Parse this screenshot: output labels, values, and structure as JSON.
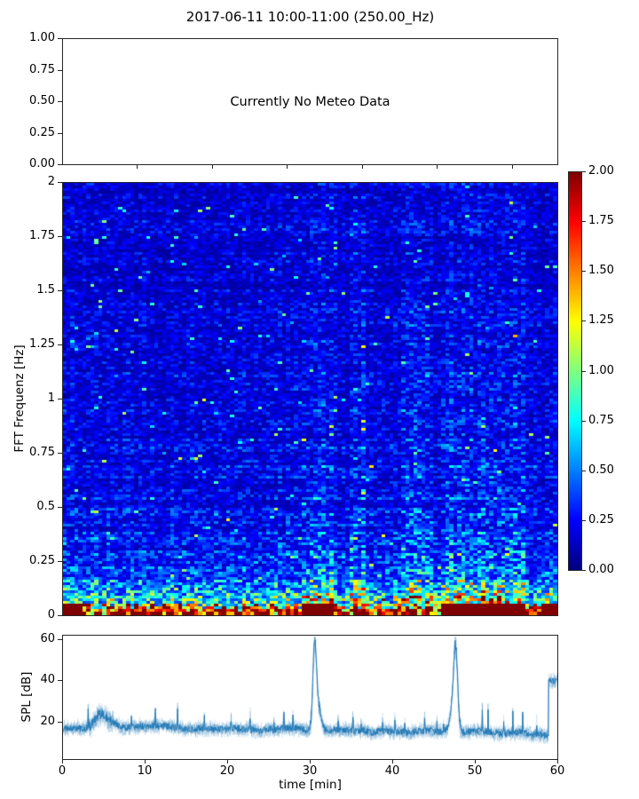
{
  "title": "2017-06-11 10:00-11:00 (250.00_Hz)",
  "colors": {
    "accent": "#1f77b4",
    "spine": "#262626",
    "background": "#ffffff"
  },
  "meteo_panel": {
    "message": "Currently No Meteo Data",
    "yticks": [
      "1.00",
      "0.75",
      "0.50",
      "0.25",
      "0.00"
    ],
    "ylim": [
      0.0,
      1.0
    ],
    "xtick_positions": [
      0.151,
      0.303,
      0.454,
      0.606,
      0.757,
      0.908
    ]
  },
  "spectrogram_panel": {
    "ylabel": "FFT Frequenz [Hz]",
    "yticks": [
      "2",
      "1.75",
      "1.5",
      "1.25",
      "1",
      "0.75",
      "0.5",
      "0.25",
      "0"
    ],
    "ylim": [
      0,
      2
    ]
  },
  "colorbar": {
    "ticks": [
      "2.00",
      "1.75",
      "1.50",
      "1.25",
      "1.00",
      "0.75",
      "0.50",
      "0.25",
      "0.00"
    ],
    "clim": [
      0,
      2
    ],
    "colormap": "jet"
  },
  "spl_panel": {
    "ylabel": "SPL [dB]",
    "xlabel": "time [min]",
    "yticks": [
      "60",
      "40",
      "20"
    ],
    "ytick_values": [
      60,
      40,
      20
    ],
    "xticks": [
      "0",
      "10",
      "20",
      "30",
      "40",
      "50",
      "60"
    ],
    "xlim": [
      0,
      60
    ],
    "ylim": [
      2,
      62
    ]
  },
  "chart_data": [
    {
      "type": "heatmap",
      "title": "2017-06-11 10:00-11:00 (250.00_Hz)",
      "xlabel": "time [min]",
      "ylabel": "FFT Frequenz [Hz]",
      "x_range_min": [
        0,
        60
      ],
      "y_range_hz": [
        0,
        2
      ],
      "color_range": [
        0,
        2
      ],
      "colormap": "jet",
      "summary": "Noisy spectrogram: mostly blue (power 0.1-0.4) above 0.5 Hz with horizontal row banding; increasing power toward low frequencies with cyan/green streaks below 0.3 Hz; saturated red/dark-red (>=2) patches in the lowest rows (<0.06 Hz), strongest near 0-2 min, 29-33 min, 46-56 min and 58-60 min",
      "base_profile": [
        {
          "f": 2.0,
          "mean": 0.17
        },
        {
          "f": 1.5,
          "mean": 0.18
        },
        {
          "f": 1.0,
          "mean": 0.2
        },
        {
          "f": 0.6,
          "mean": 0.23
        },
        {
          "f": 0.4,
          "mean": 0.27
        },
        {
          "f": 0.25,
          "mean": 0.33
        },
        {
          "f": 0.15,
          "mean": 0.42
        },
        {
          "f": 0.08,
          "mean": 0.55
        },
        {
          "f": 0.04,
          "mean": 0.75
        },
        {
          "f": 0.0,
          "mean": 1.0
        }
      ],
      "hot_time_ranges_min": [
        [
          0,
          2.2
        ],
        [
          28.8,
          33.0
        ],
        [
          45.8,
          56.0
        ],
        [
          58.3,
          60.0
        ]
      ],
      "enhanced_time_columns_min": [
        [
          28.8,
          33.0
        ],
        [
          35.0,
          37.0
        ],
        [
          41.0,
          45.0
        ],
        [
          45.8,
          56.0
        ]
      ],
      "generation": {
        "seed": 42,
        "rows": 162,
        "cols": 124
      }
    },
    {
      "type": "line",
      "name": "SPL",
      "xlabel": "time [min]",
      "ylabel": "SPL [dB]",
      "xlim": [
        0,
        60
      ],
      "ylim": [
        2,
        62
      ],
      "color": "#1f77b4",
      "baseline_db": 16.5,
      "noise_band_db": [
        11,
        22
      ],
      "features": [
        {
          "time_min": 4.7,
          "peak_db": 30,
          "kind": "broad bump"
        },
        {
          "time_min": 30.55,
          "peak_db": 58,
          "kind": "sharp spike"
        },
        {
          "time_min": 47.65,
          "peak_db": 57,
          "kind": "sharp spike"
        },
        {
          "time_start_min": 58.9,
          "time_end_min": 60,
          "level_db": 41,
          "kind": "elevated step"
        }
      ],
      "minor_spike_times_min": [
        3.05,
        8.3,
        11.2,
        13.9,
        17.15,
        20.4,
        22.7,
        25.6,
        26.8,
        27.9,
        33.4,
        35.2,
        36.2,
        38.8,
        40.3,
        41.5,
        43.9,
        45.4,
        46.2,
        50.9,
        51.6,
        53.5,
        54.6,
        55.8,
        57.5
      ],
      "generation": {
        "seed": 7,
        "points": 1200
      }
    }
  ]
}
